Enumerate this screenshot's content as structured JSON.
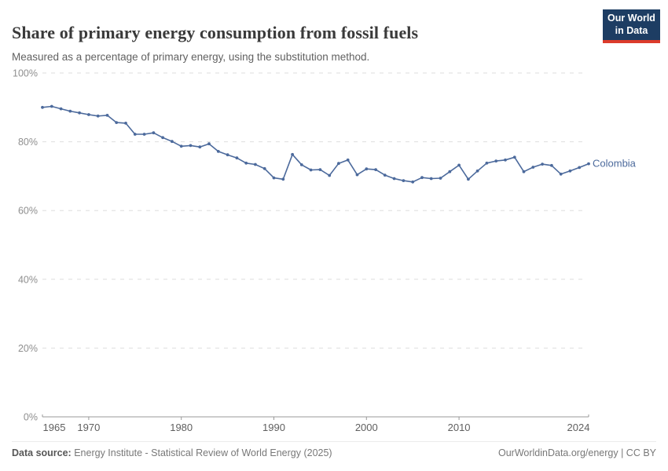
{
  "header": {
    "title": "Share of primary energy consumption from fossil fuels",
    "subtitle": "Measured as a percentage of primary energy, using the substitution method.",
    "logo": {
      "line1": "Our World",
      "line2": "in Data",
      "bg_color": "#1d3d63",
      "bar_color": "#dc3b2b"
    }
  },
  "chart_data": {
    "type": "line",
    "title": "Share of primary energy consumption from fossil fuels",
    "xlabel": "",
    "ylabel": "",
    "xlim": [
      1965,
      2024
    ],
    "ylim": [
      0,
      100
    ],
    "grid": "horizontal-dashed",
    "legend_position": "end-of-line-label",
    "yticks": [
      {
        "value": 0,
        "label": "0%"
      },
      {
        "value": 20,
        "label": "20%"
      },
      {
        "value": 40,
        "label": "40%"
      },
      {
        "value": 60,
        "label": "60%"
      },
      {
        "value": 80,
        "label": "80%"
      },
      {
        "value": 100,
        "label": "100%"
      }
    ],
    "xticks": [
      {
        "value": 1965,
        "label": "1965"
      },
      {
        "value": 1970,
        "label": "1970"
      },
      {
        "value": 1980,
        "label": "1980"
      },
      {
        "value": 1990,
        "label": "1990"
      },
      {
        "value": 2000,
        "label": "2000"
      },
      {
        "value": 2010,
        "label": "2010"
      },
      {
        "value": 2024,
        "label": "2024"
      }
    ],
    "series": [
      {
        "name": "Colombia",
        "color": "#4C6A9C",
        "x": [
          1965,
          1966,
          1967,
          1968,
          1969,
          1970,
          1971,
          1972,
          1973,
          1974,
          1975,
          1976,
          1977,
          1978,
          1979,
          1980,
          1981,
          1982,
          1983,
          1984,
          1985,
          1986,
          1987,
          1988,
          1989,
          1990,
          1991,
          1992,
          1993,
          1994,
          1995,
          1996,
          1997,
          1998,
          1999,
          2000,
          2001,
          2002,
          2003,
          2004,
          2005,
          2006,
          2007,
          2008,
          2009,
          2010,
          2011,
          2012,
          2013,
          2014,
          2015,
          2016,
          2017,
          2018,
          2019,
          2020,
          2021,
          2022,
          2023,
          2024
        ],
        "values": [
          90.0,
          90.3,
          89.6,
          88.9,
          88.4,
          87.9,
          87.5,
          87.7,
          85.6,
          85.4,
          82.2,
          82.2,
          82.6,
          81.2,
          80.1,
          78.7,
          78.9,
          78.5,
          79.4,
          77.2,
          76.2,
          75.3,
          73.8,
          73.4,
          72.2,
          69.5,
          69.1,
          76.3,
          73.3,
          71.8,
          71.9,
          70.2,
          73.7,
          74.7,
          70.4,
          72.1,
          71.9,
          70.3,
          69.3,
          68.7,
          68.3,
          69.6,
          69.3,
          69.4,
          71.3,
          73.2,
          69.1,
          71.5,
          73.8,
          74.4,
          74.7,
          75.5,
          71.3,
          72.6,
          73.5,
          73.1,
          70.6,
          71.5,
          72.5,
          73.6
        ]
      }
    ],
    "colors": {
      "grid": "#dedede",
      "axis": "#999999",
      "ytick_text": "#8f8f8f",
      "xtick_text": "#5f5f5f"
    }
  },
  "footer": {
    "datasource_label": "Data source:",
    "datasource_value": " Energy Institute - Statistical Review of World Energy (2025)",
    "credit": "OurWorldinData.org/energy | CC BY"
  }
}
